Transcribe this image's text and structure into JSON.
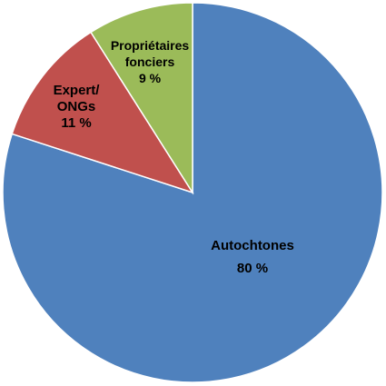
{
  "chart_data": {
    "type": "pie",
    "title": "",
    "slices": [
      {
        "label_lines": [
          "Autochtones"
        ],
        "value": 80,
        "value_label": "80 %",
        "color": "#4f81bd"
      },
      {
        "label_lines": [
          "Expert/",
          "ONGs"
        ],
        "value": 11,
        "value_label": "11 %",
        "color": "#c0504d"
      },
      {
        "label_lines": [
          "Propriétaires",
          "fonciers"
        ],
        "value": 9,
        "value_label": "9 %",
        "color": "#9bbb59"
      }
    ],
    "start": "12 o'clock",
    "direction": "clockwise",
    "legend": "none"
  }
}
